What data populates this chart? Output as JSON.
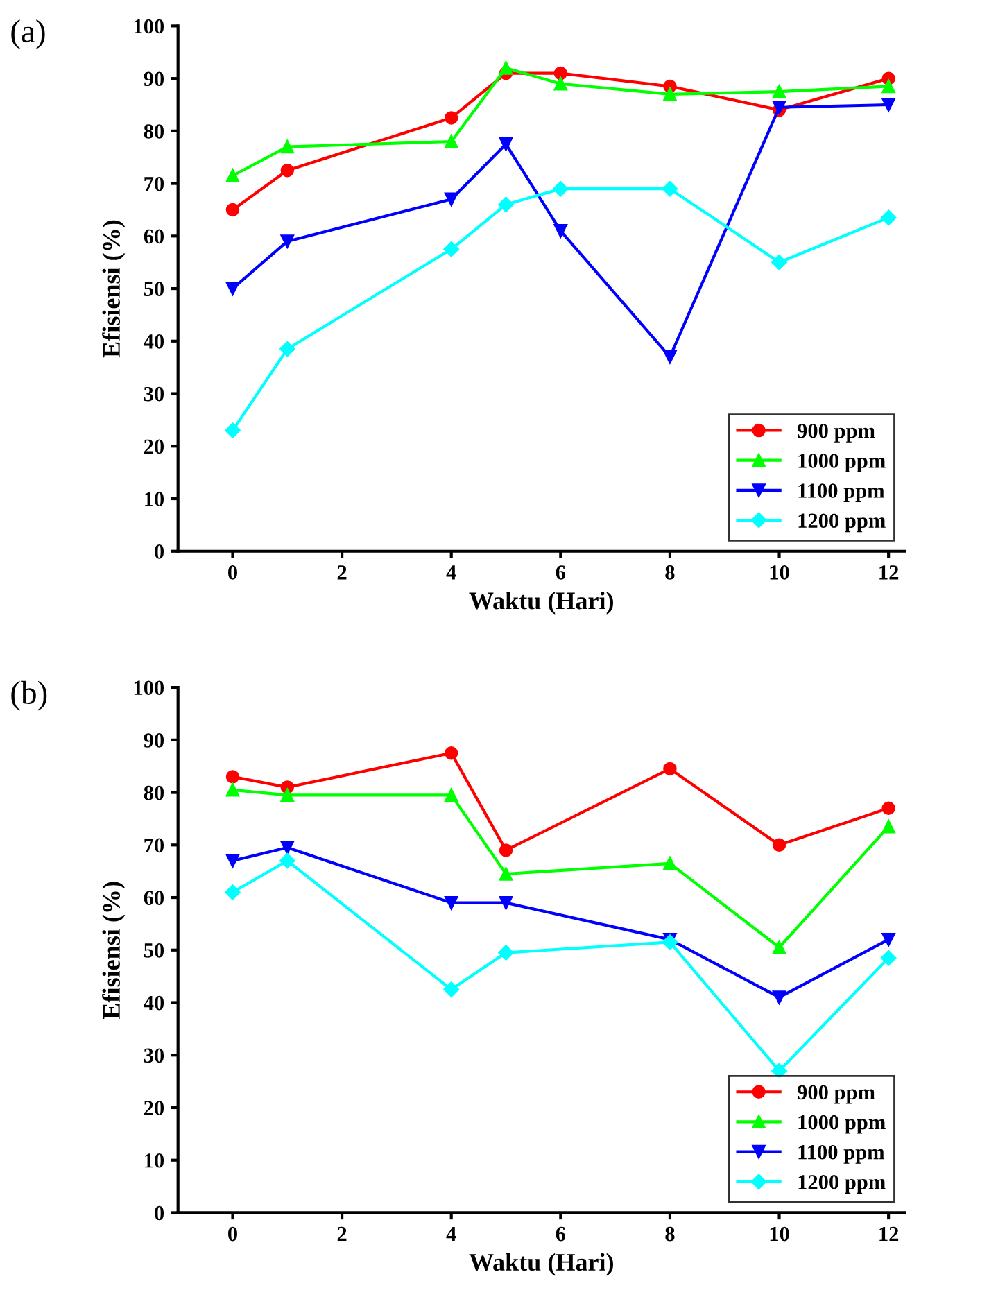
{
  "chart_data": [
    {
      "type": "line",
      "title": "(a)",
      "xlabel": "Waktu (Hari)",
      "ylabel": "Efisiensi (%)",
      "x": [
        0,
        1,
        4,
        5,
        6,
        8,
        10,
        12
      ],
      "xlim": [
        -1,
        12.3
      ],
      "xticks": [
        0,
        2,
        4,
        6,
        8,
        10,
        12
      ],
      "ylim": [
        0,
        100
      ],
      "yticks": [
        0,
        10,
        20,
        30,
        40,
        50,
        60,
        70,
        80,
        90,
        100
      ],
      "grid": false,
      "legend": "bottom right",
      "series": [
        {
          "name": "900 ppm",
          "color": "#ff0000",
          "marker": "circle",
          "values": [
            65,
            72.5,
            82.5,
            91,
            91,
            88.5,
            84,
            90
          ]
        },
        {
          "name": "1000 ppm",
          "color": "#00ff00",
          "marker": "triangle",
          "values": [
            71.5,
            77,
            78,
            92,
            89,
            87,
            87.5,
            88.5
          ]
        },
        {
          "name": "1100 ppm",
          "color": "#0000ff",
          "marker": "triangle_down",
          "values": [
            50,
            59,
            67,
            77.5,
            61,
            37,
            84.5,
            85
          ]
        },
        {
          "name": "1200 ppm",
          "color": "#00ffff",
          "marker": "diamond",
          "values": [
            23,
            38.5,
            57.5,
            66,
            69,
            69,
            55,
            63.5
          ]
        }
      ]
    },
    {
      "type": "line",
      "title": "(b)",
      "xlabel": "Waktu (Hari)",
      "ylabel": "Efisiensi (%)",
      "x": [
        0,
        1,
        4,
        5,
        8,
        10,
        12
      ],
      "xlim": [
        -1,
        12.3
      ],
      "xticks": [
        0,
        2,
        4,
        6,
        8,
        10,
        12
      ],
      "ylim": [
        0,
        100
      ],
      "yticks": [
        0,
        10,
        20,
        30,
        40,
        50,
        60,
        70,
        80,
        90,
        100
      ],
      "grid": false,
      "legend": "bottom right",
      "series": [
        {
          "name": "900 ppm",
          "color": "#ff0000",
          "marker": "circle",
          "values": [
            83,
            81,
            87.5,
            69,
            84.5,
            70,
            77
          ]
        },
        {
          "name": "1000 ppm",
          "color": "#00ff00",
          "marker": "triangle",
          "values": [
            80.5,
            79.5,
            79.5,
            64.5,
            66.5,
            50.5,
            73.5
          ]
        },
        {
          "name": "1100 ppm",
          "color": "#0000ff",
          "marker": "triangle_down",
          "values": [
            67,
            69.5,
            59,
            59,
            52,
            41,
            52
          ]
        },
        {
          "name": "1200 ppm",
          "color": "#00ffff",
          "marker": "diamond",
          "values": [
            61,
            67,
            42.5,
            49.5,
            51.5,
            27,
            48.5
          ]
        }
      ]
    }
  ]
}
